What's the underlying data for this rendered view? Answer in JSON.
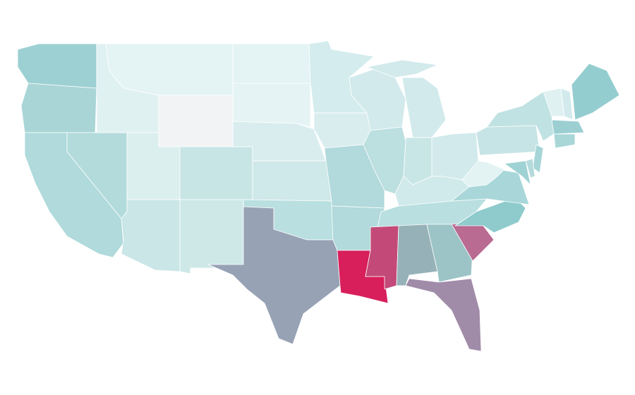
{
  "map": {
    "stroke": "#ffffff",
    "regions": [
      {
        "color": "#9dd0d3"
      },
      {
        "color": "#aad5d7"
      },
      {
        "color": "#b0dadb"
      },
      {
        "color": "#b3dbdb"
      },
      {
        "color": "#e0f1f2"
      },
      {
        "color": "#e4f3f4"
      },
      {
        "color": "#f1f3f4"
      },
      {
        "color": "#dcefef"
      },
      {
        "color": "#cae6e7"
      },
      {
        "color": "#c8e5e6"
      },
      {
        "color": "#cee8e8"
      },
      {
        "color": "#e4f3f3"
      },
      {
        "color": "#e5f3f4"
      },
      {
        "color": "#d9edef"
      },
      {
        "color": "#cfe8e9"
      },
      {
        "color": "#b9dfe0"
      },
      {
        "color": "#98a2b5"
      },
      {
        "color": "#d4eced"
      },
      {
        "color": "#d9edef"
      },
      {
        "color": "#b2d9db"
      },
      {
        "color": "#b2d9db"
      },
      {
        "color": "#d81e5b"
      },
      {
        "color": "#d2eaec"
      },
      {
        "color": "#bcdfe0"
      },
      {
        "color": "#d2eaec"
      },
      {
        "color": "#d2eaec"
      },
      {
        "color": "#c9e6e7"
      },
      {
        "color": "#d2eaec"
      },
      {
        "color": "#d0e9ea"
      },
      {
        "color": "#b9dfe0"
      },
      {
        "color": "#c34a78"
      },
      {
        "color": "#96b2b8"
      },
      {
        "color": "#9cc4c7"
      },
      {
        "color": "#a08ba8"
      },
      {
        "color": "#b96b92"
      },
      {
        "color": "#8fcbcd"
      },
      {
        "color": "#a9d7d9"
      },
      {
        "color": "#e3f2f3"
      },
      {
        "color": "#c6e4e5"
      },
      {
        "color": "#c1e2e3"
      },
      {
        "color": "#a6d5d7"
      },
      {
        "color": "#9fd2d4"
      },
      {
        "color": "#b5dadb"
      },
      {
        "color": "#e0f1f2"
      },
      {
        "color": "#d2eaec"
      },
      {
        "color": "#94cdd0"
      },
      {
        "color": "#9ccfd2"
      },
      {
        "color": "#a9d7d8"
      }
    ]
  }
}
